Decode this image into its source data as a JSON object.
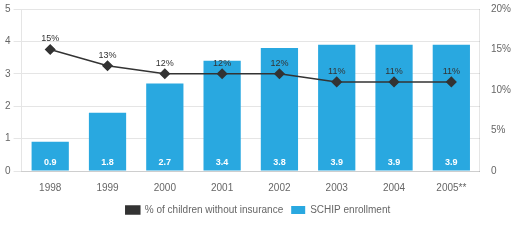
{
  "chart_data": {
    "type": "bar",
    "categories": [
      "1998",
      "1999",
      "2000",
      "2001",
      "2002",
      "2003",
      "2004",
      "2005**"
    ],
    "series": [
      {
        "name": "SCHIP enrollment",
        "type": "bar",
        "color": "#29a8e0",
        "values": [
          0.9,
          1.8,
          2.7,
          3.4,
          3.8,
          3.9,
          3.9,
          3.9
        ]
      },
      {
        "name": "% of children without insurance",
        "type": "line",
        "axis": "y2",
        "color": "#333333",
        "marker": "diamond",
        "values": [
          15,
          13,
          12,
          12,
          12,
          11,
          11,
          11
        ],
        "value_labels": [
          "15%",
          "13%",
          "12%",
          "12%",
          "12%",
          "11%",
          "11%",
          "11%"
        ]
      }
    ],
    "ylim": [
      0,
      5
    ],
    "yticks": [
      0,
      1,
      2,
      3,
      4,
      5
    ],
    "y2lim": [
      0,
      20
    ],
    "y2ticks": [
      0,
      {
        "value": 5,
        "label": "5%"
      },
      {
        "value": 10,
        "label": "10%"
      },
      {
        "value": 15,
        "label": "15%"
      },
      {
        "value": 20,
        "label": "20%"
      }
    ],
    "grid": true,
    "legend": "bottom",
    "data_labels": true
  }
}
